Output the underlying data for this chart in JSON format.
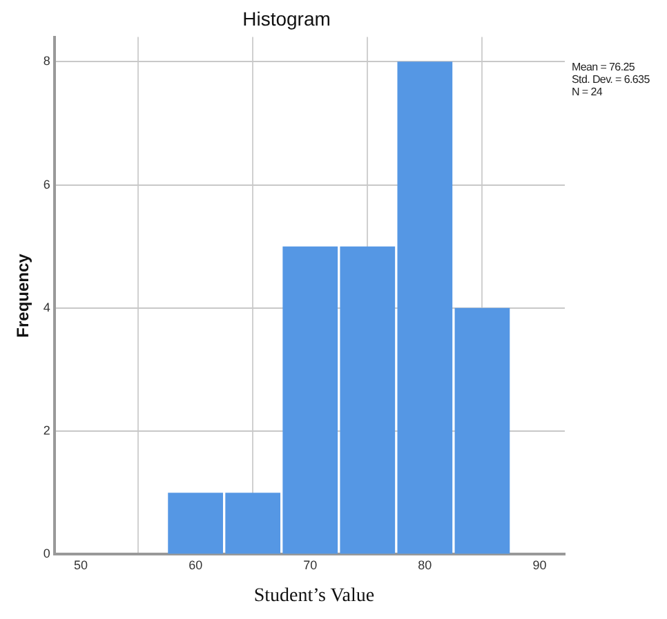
{
  "chart_data": {
    "type": "histogram",
    "title": "Histogram",
    "xlabel": "Student’s Value",
    "ylabel": "Frequency",
    "bins": [
      57.5,
      62.5,
      67.5,
      72.5,
      77.5,
      82.5,
      87.5
    ],
    "values": [
      1,
      1,
      5,
      5,
      8,
      4
    ],
    "color": "#5597e4",
    "xlim": [
      47.7,
      92.2
    ],
    "xticks": [
      50,
      60,
      70,
      80,
      90
    ],
    "ylim": [
      0,
      8.4
    ],
    "yticks": [
      0,
      2,
      4,
      6,
      8
    ],
    "grid": true,
    "annotations": [
      "Mean = 76.25",
      "Std. Dev. = 6.635",
      "N = 24"
    ]
  }
}
